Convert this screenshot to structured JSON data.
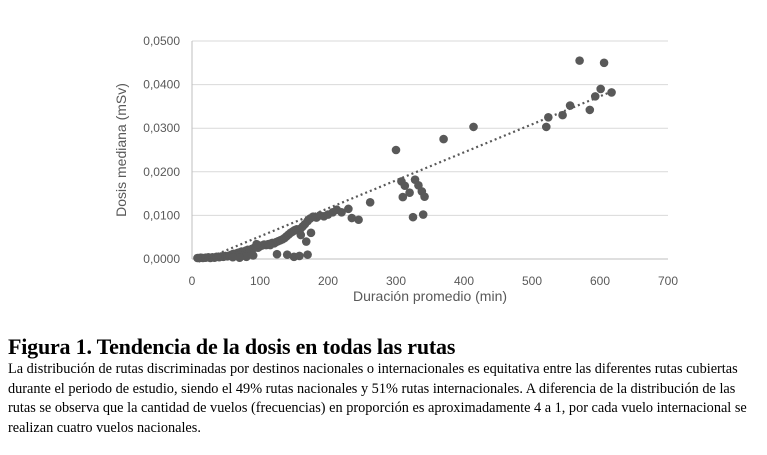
{
  "chart_data": {
    "type": "scatter",
    "title": "",
    "xlabel": "Duración promedio (min)",
    "ylabel": "Dosis mediana (mSv)",
    "xlim": [
      0,
      700
    ],
    "ylim": [
      0,
      0.05
    ],
    "x_ticks": [
      "0",
      "100",
      "200",
      "300",
      "400",
      "500",
      "600",
      "700"
    ],
    "y_ticks": [
      "0,0000",
      "0,0100",
      "0,0200",
      "0,0300",
      "0,0400",
      "0,0500"
    ],
    "grid": "horizontal",
    "legend": "none",
    "marker_color": "#595959",
    "trendline": {
      "style": "dotted",
      "color": "#595959",
      "x": [
        10,
        620
      ],
      "y": [
        -0.0006,
        0.0386
      ]
    },
    "points": [
      [
        10,
        0.0002
      ],
      [
        13,
        0.0003
      ],
      [
        16,
        0.0002
      ],
      [
        20,
        0.0003
      ],
      [
        24,
        0.0004
      ],
      [
        27,
        0.0002
      ],
      [
        30,
        0.0004
      ],
      [
        33,
        0.0003
      ],
      [
        36,
        0.0005
      ],
      [
        40,
        0.0004
      ],
      [
        43,
        0.0006
      ],
      [
        46,
        0.0005
      ],
      [
        49,
        0.0007
      ],
      [
        52,
        0.0006
      ],
      [
        55,
        0.0008
      ],
      [
        58,
        0.001
      ],
      [
        61,
        0.0012
      ],
      [
        64,
        0.0011
      ],
      [
        67,
        0.0014
      ],
      [
        70,
        0.0015
      ],
      [
        73,
        0.0017
      ],
      [
        76,
        0.0016
      ],
      [
        79,
        0.0019
      ],
      [
        82,
        0.0021
      ],
      [
        85,
        0.002
      ],
      [
        88,
        0.0023
      ],
      [
        91,
        0.0025
      ],
      [
        94,
        0.0027
      ],
      [
        97,
        0.0026
      ],
      [
        100,
        0.0029
      ],
      [
        103,
        0.0031
      ],
      [
        106,
        0.0033
      ],
      [
        109,
        0.0032
      ],
      [
        112,
        0.0034
      ],
      [
        115,
        0.0035
      ],
      [
        118,
        0.0037
      ],
      [
        121,
        0.0036
      ],
      [
        124,
        0.0039
      ],
      [
        127,
        0.0041
      ],
      [
        130,
        0.0043
      ],
      [
        133,
        0.0045
      ],
      [
        136,
        0.0048
      ],
      [
        139,
        0.0052
      ],
      [
        142,
        0.0056
      ],
      [
        145,
        0.006
      ],
      [
        148,
        0.0063
      ],
      [
        151,
        0.0066
      ],
      [
        154,
        0.0068
      ],
      [
        157,
        0.0065
      ],
      [
        160,
        0.007
      ],
      [
        163,
        0.0075
      ],
      [
        166,
        0.008
      ],
      [
        170,
        0.0087
      ],
      [
        174,
        0.0093
      ],
      [
        178,
        0.0097
      ],
      [
        183,
        0.0095
      ],
      [
        188,
        0.01
      ],
      [
        194,
        0.0098
      ],
      [
        200,
        0.0102
      ],
      [
        207,
        0.0107
      ],
      [
        213,
        0.0113
      ],
      [
        220,
        0.0107
      ],
      [
        230,
        0.0115
      ],
      [
        235,
        0.0094
      ],
      [
        245,
        0.009
      ],
      [
        262,
        0.013
      ],
      [
        300,
        0.025
      ],
      [
        308,
        0.0178
      ],
      [
        313,
        0.0168
      ],
      [
        320,
        0.0152
      ],
      [
        328,
        0.0182
      ],
      [
        333,
        0.0169
      ],
      [
        338,
        0.0155
      ],
      [
        342,
        0.0143
      ],
      [
        310,
        0.0142
      ],
      [
        325,
        0.0096
      ],
      [
        340,
        0.0102
      ],
      [
        370,
        0.0275
      ],
      [
        414,
        0.0303
      ],
      [
        521,
        0.0303
      ],
      [
        524,
        0.0325
      ],
      [
        545,
        0.033
      ],
      [
        556,
        0.0352
      ],
      [
        570,
        0.0455
      ],
      [
        585,
        0.0342
      ],
      [
        593,
        0.0373
      ],
      [
        601,
        0.039
      ],
      [
        606,
        0.045
      ],
      [
        617,
        0.0382
      ],
      [
        150,
        0.0005
      ],
      [
        158,
        0.0007
      ],
      [
        170,
        0.001
      ],
      [
        140,
        0.001
      ],
      [
        125,
        0.0011
      ],
      [
        8,
        0.0001
      ],
      [
        80,
        0.0005
      ],
      [
        90,
        0.0008
      ],
      [
        70,
        0.0003
      ],
      [
        60,
        0.0004
      ],
      [
        95,
        0.0034
      ],
      [
        115,
        0.0032
      ],
      [
        160,
        0.0055
      ],
      [
        168,
        0.004
      ],
      [
        175,
        0.006
      ]
    ]
  },
  "figure": {
    "caption": "Figura 1. Tendencia de la dosis en todas las rutas",
    "paragraph": "La distribución de rutas discriminadas por destinos nacionales o internacionales es equitativa entre las diferentes rutas cubiertas durante el periodo de estudio, siendo el 49% rutas nacionales y 51% rutas internacionales. A diferencia de la distribución de las rutas se observa que la cantidad de vuelos (frecuencias) en proporción es aproximadamente 4 a 1, por cada vuelo internacional se realizan cuatro vuelos nacionales."
  }
}
